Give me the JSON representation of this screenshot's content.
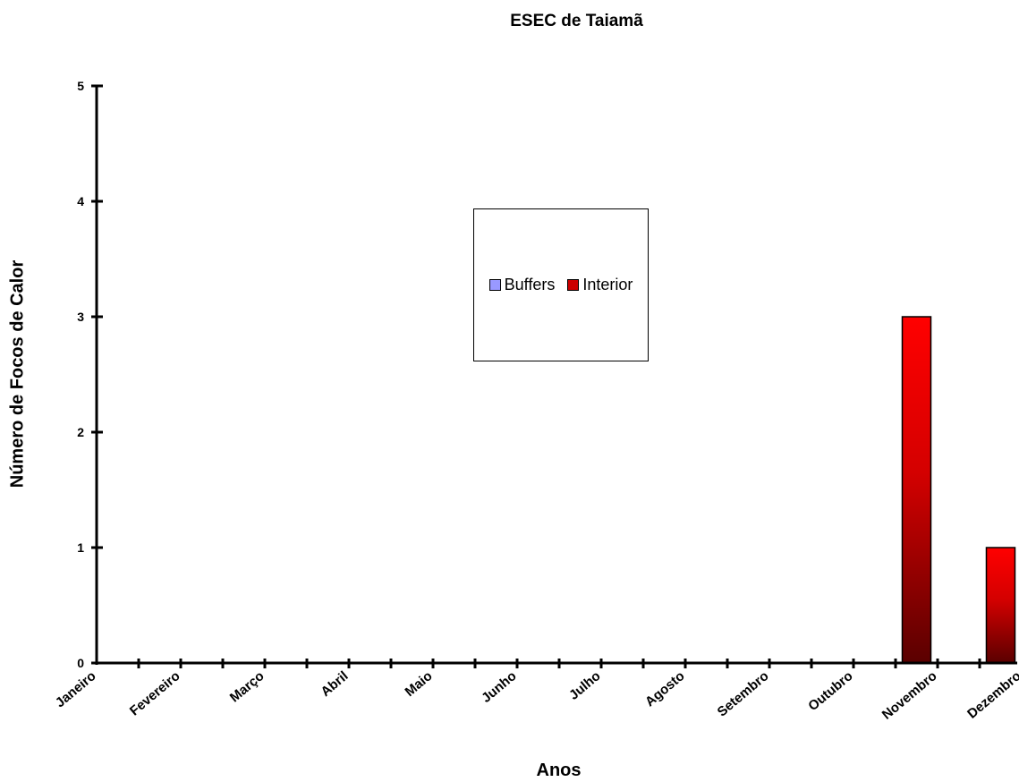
{
  "chart_data": {
    "type": "bar",
    "title": "ESEC de Taiamã",
    "xlabel": "Anos",
    "ylabel": "Número de Focos de Calor",
    "categories": [
      "Janeiro",
      "Fevereiro",
      "Março",
      "Abril",
      "Maio",
      "Junho",
      "Julho",
      "Agosto",
      "Setembro",
      "Outubro",
      "Novembro",
      "Dezembro"
    ],
    "series": [
      {
        "name": "Buffers",
        "values": [
          0,
          0,
          0,
          0,
          0,
          0,
          0,
          0,
          0,
          0,
          0,
          0
        ],
        "color": "#9999ff"
      },
      {
        "name": "Interior",
        "values": [
          0,
          0,
          0,
          0,
          0,
          0,
          0,
          0,
          0,
          3,
          1,
          0
        ],
        "color": "#ff0000"
      }
    ],
    "ylim": [
      0,
      5
    ],
    "yticks": [
      "0",
      "1",
      "2",
      "3",
      "4",
      "5"
    ],
    "grid": false,
    "legend_position": "center"
  }
}
